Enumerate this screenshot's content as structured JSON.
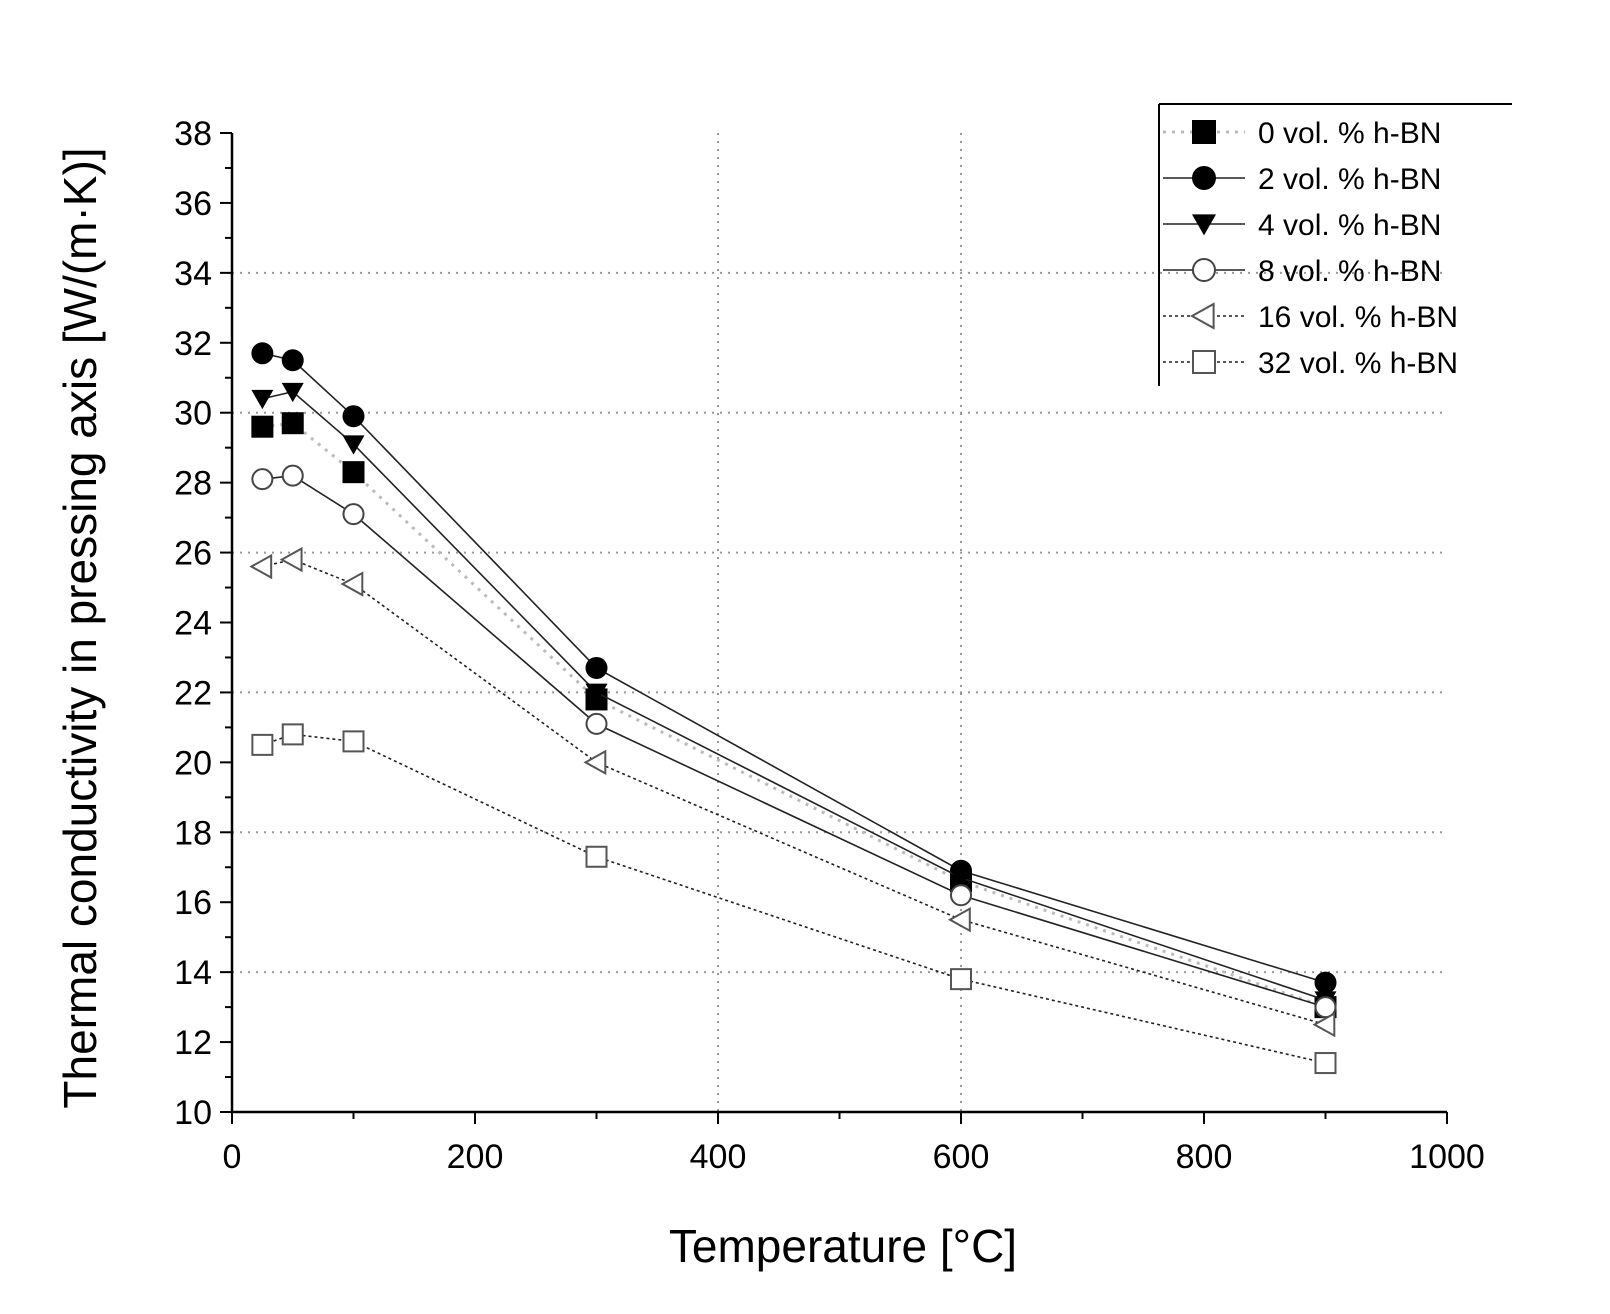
{
  "chart_data": {
    "type": "line",
    "title": "",
    "xlabel": "Temperature [°C]",
    "ylabel": "Thermal conductivity in pressing axis [W/(m·K)]",
    "xlim": [
      0,
      1000
    ],
    "ylim": [
      10,
      38
    ],
    "xticks": [
      0,
      200,
      400,
      600,
      800,
      1000
    ],
    "xtick_labels": [
      "0",
      "200",
      "400",
      "600",
      "800",
      "1000"
    ],
    "yticks": [
      10,
      12,
      14,
      16,
      18,
      20,
      22,
      24,
      26,
      28,
      30,
      32,
      34,
      36,
      38
    ],
    "ytick_labels": [
      "10",
      "12",
      "14",
      "16",
      "18",
      "20",
      "22",
      "24",
      "26",
      "28",
      "30",
      "32",
      "34",
      "36",
      "38"
    ],
    "grid": "dotted major gridlines",
    "legend_position": "top-right",
    "x": [
      25,
      50,
      100,
      300,
      600,
      900
    ],
    "series": [
      {
        "name": "0 vol. % h-BN",
        "marker": "square-filled",
        "line": "dotted-gray",
        "values": [
          29.6,
          29.7,
          28.3,
          21.8,
          16.6,
          13.0
        ]
      },
      {
        "name": "2 vol. % h-BN",
        "marker": "circle-filled",
        "line": "solid",
        "values": [
          31.7,
          31.5,
          29.9,
          22.7,
          16.9,
          13.7
        ]
      },
      {
        "name": "4 vol. % h-BN",
        "marker": "triangle-down-filled",
        "line": "solid",
        "values": [
          30.4,
          30.6,
          29.1,
          22.0,
          16.7,
          13.2
        ]
      },
      {
        "name": "8 vol. % h-BN",
        "marker": "circle-open",
        "line": "solid",
        "values": [
          28.1,
          28.2,
          27.1,
          21.1,
          16.2,
          13.0
        ]
      },
      {
        "name": "16 vol. % h-BN",
        "marker": "triangle-left-open",
        "line": "dotted",
        "values": [
          25.6,
          25.8,
          25.1,
          20.0,
          15.5,
          12.5
        ]
      },
      {
        "name": "32 vol. % h-BN",
        "marker": "square-open",
        "line": "dotted",
        "values": [
          20.5,
          20.8,
          20.6,
          17.3,
          13.8,
          11.4
        ]
      }
    ]
  }
}
